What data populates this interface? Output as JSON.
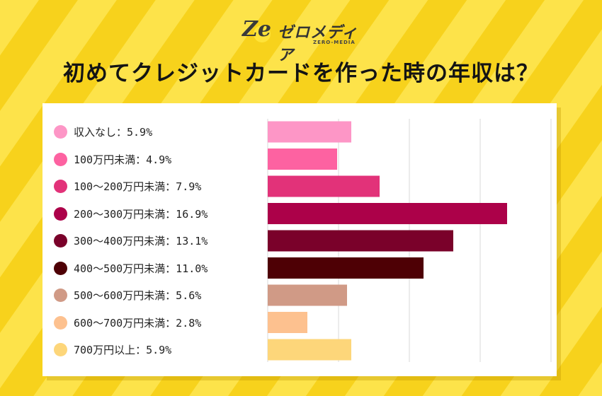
{
  "logo": {
    "mark": "Ze",
    "text": "ゼロメディア",
    "subtext": "ZERO-MEDIA"
  },
  "title": "初めてクレジットカードを作った時の年収は？",
  "colors": {
    "background": "#f7d21c",
    "stripe": "#fde34a",
    "card": "#ffffff"
  },
  "chart_data": {
    "type": "bar",
    "orientation": "horizontal",
    "title": "初めてクレジットカードを作った時の年収は？",
    "xlim": [
      0,
      20
    ],
    "grid": true,
    "legend_position": "left",
    "series": [
      {
        "label": "収入なし：5.9%",
        "value": 5.9,
        "color": "#fd96c6"
      },
      {
        "label": "100万円未満：4.9%",
        "value": 4.9,
        "color": "#fd62a1"
      },
      {
        "label": "100～200万円未満：7.9%",
        "value": 7.9,
        "color": "#e23279"
      },
      {
        "label": "200～300万円未満：16.9%",
        "value": 16.9,
        "color": "#ac0149"
      },
      {
        "label": "300～400万円未満：13.1%",
        "value": 13.1,
        "color": "#7a012a"
      },
      {
        "label": "400～500万円未満：11.0%",
        "value": 11.0,
        "color": "#4e0005"
      },
      {
        "label": "500～600万円未満：5.6%",
        "value": 5.6,
        "color": "#d09a86"
      },
      {
        "label": "600～700万円未満：2.8%",
        "value": 2.8,
        "color": "#fdc18f"
      },
      {
        "label": "700万円以上：5.9%",
        "value": 5.9,
        "color": "#fdd67a"
      }
    ]
  }
}
